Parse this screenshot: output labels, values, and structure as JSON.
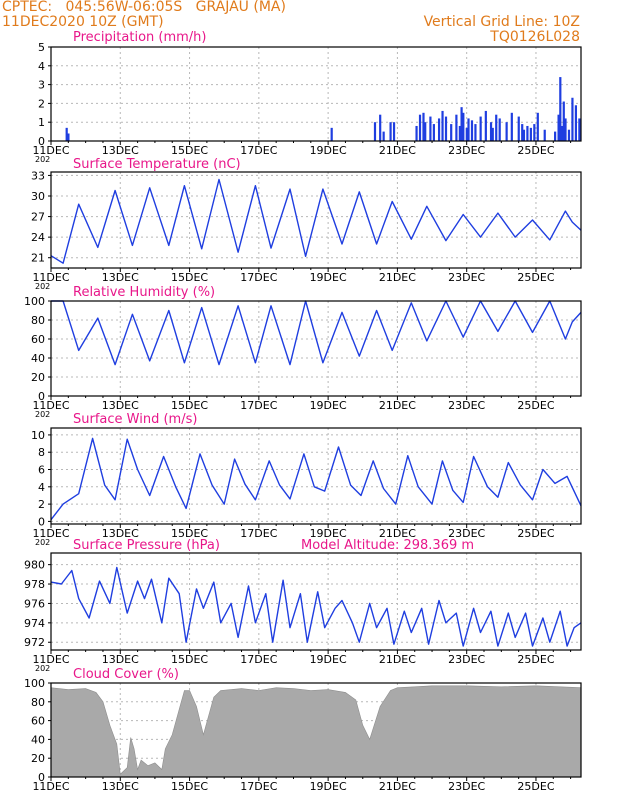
{
  "header": {
    "line1_left": "CPTEC:   045:56W-06:05S   GRAJAU (MA)",
    "line2_left": "11DEC2020 10Z (GMT)",
    "line1_right": "Vertical Grid Line: 10Z",
    "line2_right": "TQ0126L028"
  },
  "colors": {
    "header": "#e07b1c",
    "title": "#e8178a",
    "line": "#1f3ee0",
    "bar": "#1f3ee0",
    "cloud": "#a9a9a9"
  },
  "x_axis": {
    "ticks": [
      "11DEC",
      "13DEC",
      "15DEC",
      "17DEC",
      "19DEC",
      "21DEC",
      "23DEC",
      "25DEC"
    ],
    "tick_days": [
      11,
      13,
      15,
      17,
      19,
      21,
      23,
      25
    ],
    "range": [
      11.0,
      26.3
    ],
    "start_year_stub": "202"
  },
  "chart_data": [
    {
      "type": "bar",
      "name": "precip",
      "title": "Precipitation (mm/h)",
      "ylim": [
        0,
        5
      ],
      "yticks": [
        0,
        1,
        2,
        3,
        4,
        5
      ],
      "x": [
        11.45,
        11.5,
        19.1,
        20.35,
        20.5,
        20.6,
        20.8,
        20.9,
        21.55,
        21.65,
        21.75,
        21.8,
        21.95,
        22.05,
        22.2,
        22.3,
        22.4,
        22.55,
        22.7,
        22.8,
        22.85,
        22.9,
        23.0,
        23.05,
        23.15,
        23.25,
        23.4,
        23.55,
        23.7,
        23.75,
        23.85,
        23.95,
        24.15,
        24.3,
        24.5,
        24.6,
        24.65,
        24.75,
        24.85,
        24.95,
        25.05,
        25.25,
        25.55,
        25.65,
        25.7,
        25.75,
        25.8,
        25.85,
        25.95,
        26.05,
        26.15,
        26.25
      ],
      "y": [
        0.7,
        0.4,
        0.7,
        1.0,
        1.4,
        0.5,
        1.0,
        1.0,
        0.8,
        1.4,
        1.5,
        1.0,
        1.3,
        0.9,
        1.2,
        1.6,
        1.3,
        0.9,
        1.4,
        0.8,
        1.8,
        1.5,
        0.7,
        1.2,
        1.1,
        0.9,
        1.3,
        1.6,
        1.0,
        0.7,
        1.4,
        1.2,
        1.0,
        1.5,
        1.3,
        0.9,
        0.6,
        0.8,
        0.7,
        0.9,
        1.5,
        0.6,
        0.5,
        1.4,
        3.4,
        0.8,
        2.1,
        1.2,
        0.6,
        2.3,
        1.9,
        1.2
      ]
    },
    {
      "type": "line",
      "name": "temp",
      "title": "Surface Temperature (nC)",
      "ylim": [
        19.5,
        33.5
      ],
      "yticks": [
        21,
        24,
        27,
        30,
        33
      ],
      "x": [
        11.0,
        11.35,
        11.8,
        12.35,
        12.85,
        13.35,
        13.85,
        14.4,
        14.85,
        15.35,
        15.85,
        16.4,
        16.9,
        17.35,
        17.9,
        18.35,
        18.85,
        19.4,
        19.9,
        20.4,
        20.85,
        21.4,
        21.85,
        22.4,
        22.9,
        23.4,
        23.9,
        24.4,
        24.9,
        25.4,
        25.85,
        26.05,
        26.3
      ],
      "y": [
        21.3,
        20.2,
        28.8,
        22.5,
        30.8,
        22.8,
        31.2,
        22.8,
        31.5,
        22.3,
        32.4,
        21.8,
        31.5,
        22.4,
        31.0,
        21.2,
        31.0,
        23.0,
        30.6,
        23.0,
        29.2,
        23.7,
        28.5,
        23.5,
        27.3,
        24.0,
        27.5,
        24.0,
        26.5,
        23.6,
        27.8,
        26.2,
        25.0
      ]
    },
    {
      "type": "line",
      "name": "rh",
      "title": "Relative Humidity (%)",
      "ylim": [
        0,
        100
      ],
      "yticks": [
        0,
        20,
        40,
        60,
        80,
        100
      ],
      "x": [
        11.0,
        11.35,
        11.8,
        12.35,
        12.85,
        13.35,
        13.85,
        14.4,
        14.85,
        15.35,
        15.85,
        16.4,
        16.9,
        17.35,
        17.9,
        18.35,
        18.85,
        19.4,
        19.9,
        20.4,
        20.85,
        21.4,
        21.85,
        22.4,
        22.9,
        23.4,
        23.9,
        24.4,
        24.9,
        25.4,
        25.85,
        26.05,
        26.3
      ],
      "y": [
        100,
        100,
        48,
        82,
        33,
        86,
        37,
        90,
        35,
        93,
        33,
        95,
        35,
        95,
        33,
        100,
        35,
        88,
        42,
        90,
        48,
        98,
        58,
        100,
        62,
        100,
        68,
        100,
        67,
        100,
        60,
        78,
        88
      ]
    },
    {
      "type": "line",
      "name": "wind",
      "title": "Surface Wind (m/s)",
      "ylim": [
        -0.3,
        10.8
      ],
      "yticks": [
        0,
        2,
        4,
        6,
        8,
        10
      ],
      "x": [
        11.0,
        11.35,
        11.8,
        12.2,
        12.55,
        12.85,
        13.2,
        13.5,
        13.85,
        14.25,
        14.6,
        14.9,
        15.3,
        15.65,
        16.0,
        16.3,
        16.6,
        16.9,
        17.3,
        17.6,
        17.9,
        18.3,
        18.6,
        18.9,
        19.3,
        19.65,
        19.95,
        20.3,
        20.6,
        20.95,
        21.3,
        21.6,
        22.0,
        22.3,
        22.6,
        22.9,
        23.2,
        23.6,
        23.9,
        24.2,
        24.55,
        24.9,
        25.2,
        25.55,
        25.9,
        26.3
      ],
      "y": [
        0.2,
        2.0,
        3.2,
        9.6,
        4.2,
        2.5,
        9.5,
        6.0,
        3.0,
        7.5,
        4.0,
        1.5,
        7.8,
        4.2,
        2.0,
        7.2,
        4.3,
        2.5,
        7.0,
        4.2,
        2.6,
        7.8,
        4.0,
        3.5,
        8.6,
        4.2,
        3.0,
        7.0,
        3.8,
        2.0,
        7.6,
        4.0,
        2.0,
        7.0,
        3.6,
        2.2,
        7.5,
        4.0,
        2.8,
        6.8,
        4.2,
        2.5,
        6.0,
        4.4,
        5.2,
        1.8
      ]
    },
    {
      "type": "line",
      "name": "pres",
      "title": "Surface Pressure (hPa)",
      "annotation": "Model Altitude: 298.369 m",
      "ylim": [
        971.2,
        981.2
      ],
      "yticks": [
        972,
        974,
        976,
        978,
        980
      ],
      "x": [
        11.0,
        11.3,
        11.6,
        11.8,
        12.1,
        12.4,
        12.7,
        12.9,
        13.2,
        13.5,
        13.7,
        13.9,
        14.2,
        14.4,
        14.7,
        14.9,
        15.2,
        15.4,
        15.7,
        15.9,
        16.2,
        16.4,
        16.7,
        16.9,
        17.2,
        17.4,
        17.7,
        17.9,
        18.2,
        18.4,
        18.7,
        18.9,
        19.2,
        19.4,
        19.7,
        19.9,
        20.2,
        20.4,
        20.7,
        20.9,
        21.2,
        21.4,
        21.7,
        21.9,
        22.2,
        22.4,
        22.7,
        22.9,
        23.2,
        23.4,
        23.7,
        23.9,
        24.2,
        24.4,
        24.7,
        24.9,
        25.2,
        25.4,
        25.7,
        25.9,
        26.1,
        26.3
      ],
      "y": [
        978.2,
        978.0,
        979.4,
        976.5,
        974.5,
        978.3,
        976.0,
        979.7,
        975.0,
        978.3,
        976.5,
        978.5,
        974.0,
        978.6,
        977.0,
        972.0,
        977.5,
        975.5,
        978.2,
        974.0,
        976.0,
        972.5,
        977.8,
        974.0,
        977.0,
        972.0,
        978.4,
        973.5,
        977.0,
        972.0,
        977.2,
        973.5,
        975.5,
        976.3,
        974.0,
        972.0,
        976.0,
        973.5,
        975.5,
        971.8,
        975.2,
        973.0,
        975.5,
        971.8,
        976.3,
        974.0,
        975.0,
        971.6,
        975.5,
        973.0,
        975.2,
        971.6,
        975.0,
        972.5,
        975.0,
        971.6,
        974.5,
        972.0,
        975.2,
        971.6,
        973.5,
        974.0
      ]
    },
    {
      "type": "area",
      "name": "cloud",
      "title": "Cloud Cover (%)",
      "ylim": [
        0,
        100
      ],
      "yticks": [
        0,
        20,
        40,
        60,
        80,
        100
      ],
      "x": [
        11.0,
        11.5,
        12.0,
        12.3,
        12.5,
        12.7,
        12.9,
        13.0,
        13.2,
        13.3,
        13.4,
        13.5,
        13.6,
        13.8,
        14.0,
        14.2,
        14.3,
        14.5,
        14.7,
        14.85,
        15.0,
        15.2,
        15.4,
        15.7,
        15.9,
        16.2,
        16.5,
        17.0,
        17.5,
        18.0,
        18.5,
        19.0,
        19.5,
        19.8,
        20.0,
        20.2,
        20.5,
        20.8,
        21.0,
        21.5,
        22.0,
        23.0,
        24.0,
        25.0,
        26.3
      ],
      "y": [
        95,
        93,
        94,
        90,
        80,
        55,
        35,
        3,
        10,
        42,
        30,
        8,
        18,
        12,
        15,
        8,
        30,
        45,
        72,
        92,
        92,
        75,
        45,
        85,
        92,
        93,
        94,
        92,
        95,
        94,
        92,
        93,
        90,
        82,
        55,
        40,
        75,
        92,
        95,
        96,
        97,
        97,
        96,
        97,
        95
      ]
    }
  ]
}
